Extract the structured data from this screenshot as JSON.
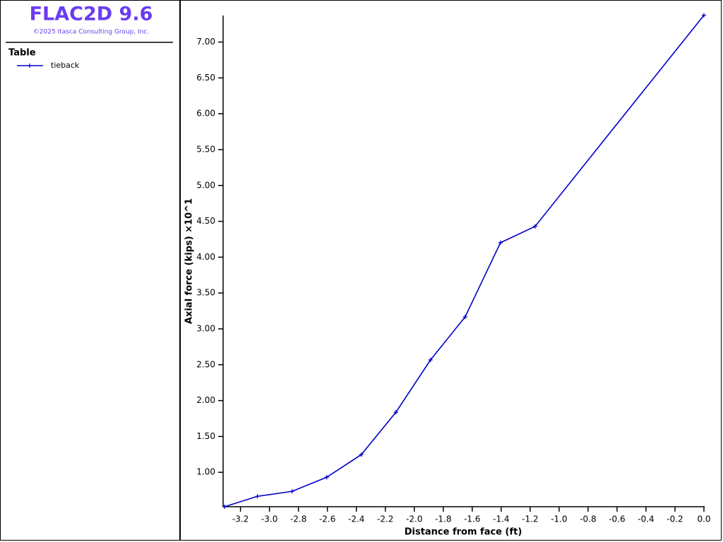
{
  "app": {
    "title": "FLAC2D 9.6",
    "copyright": "©2025 Itasca Consulting Group, Inc."
  },
  "legend": {
    "heading": "Table"
  },
  "chart_data": {
    "type": "line",
    "xlabel": "Distance from face (ft)",
    "ylabel": "Axial force (kips) ×10^1",
    "x": [
      -3.31,
      -3.083,
      -2.844,
      -2.605,
      -2.366,
      -2.127,
      -1.888,
      -1.649,
      -1.405,
      -1.166,
      0.0
    ],
    "series": [
      {
        "name": "tieback",
        "color": "#0000c8",
        "values": [
          0.52,
          0.665,
          0.734,
          0.931,
          1.246,
          1.837,
          2.567,
          3.167,
          4.202,
          4.429,
          7.374
        ]
      }
    ],
    "xlim": [
      -3.32,
      0.0
    ],
    "ylim": [
      0.52,
      7.37
    ],
    "xticks": [
      {
        "value": -3.2,
        "label": "-3.2"
      },
      {
        "value": -3.0,
        "label": "-3.0"
      },
      {
        "value": -2.8,
        "label": "-2.8"
      },
      {
        "value": -2.6,
        "label": "-2.6"
      },
      {
        "value": -2.4,
        "label": "-2.4"
      },
      {
        "value": -2.2,
        "label": "-2.2"
      },
      {
        "value": -2.0,
        "label": "-2.0"
      },
      {
        "value": -1.8,
        "label": "-1.8"
      },
      {
        "value": -1.6,
        "label": "-1.6"
      },
      {
        "value": -1.4,
        "label": "-1.4"
      },
      {
        "value": -1.2,
        "label": "-1.2"
      },
      {
        "value": -1.0,
        "label": "-1.0"
      },
      {
        "value": -0.8,
        "label": "-0.8"
      },
      {
        "value": -0.6,
        "label": "-0.6"
      },
      {
        "value": -0.4,
        "label": "-0.4"
      },
      {
        "value": -0.2,
        "label": "-0.2"
      },
      {
        "value": 0.0,
        "label": "0.0"
      }
    ],
    "yticks": [
      {
        "value": 1.0,
        "label": "1.00"
      },
      {
        "value": 1.5,
        "label": "1.50"
      },
      {
        "value": 2.0,
        "label": "2.00"
      },
      {
        "value": 2.5,
        "label": "2.50"
      },
      {
        "value": 3.0,
        "label": "3.00"
      },
      {
        "value": 3.5,
        "label": "3.50"
      },
      {
        "value": 4.0,
        "label": "4.00"
      },
      {
        "value": 4.5,
        "label": "4.50"
      },
      {
        "value": 5.0,
        "label": "5.00"
      },
      {
        "value": 5.5,
        "label": "5.50"
      },
      {
        "value": 6.0,
        "label": "6.00"
      },
      {
        "value": 6.5,
        "label": "6.50"
      },
      {
        "value": 7.0,
        "label": "7.00"
      }
    ]
  }
}
